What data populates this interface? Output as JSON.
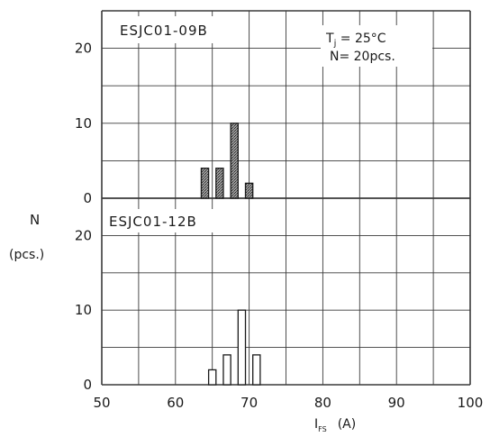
{
  "chart_data": [
    {
      "type": "bar",
      "title": "ESJC01-09B",
      "annotations": [
        "Tj = 25°C",
        "N= 20pcs."
      ],
      "xlabel": "IFS (A)",
      "ylabel": "N (pcs.)",
      "xlim": [
        50,
        100
      ],
      "ylim": [
        0,
        25
      ],
      "x_ticks": [
        "50",
        "60",
        "70",
        "80",
        "90",
        "100"
      ],
      "y_ticks": [
        "0",
        "10",
        "20"
      ],
      "bar_fill": "hatched",
      "bars": [
        {
          "x": 64,
          "value": 4
        },
        {
          "x": 66,
          "value": 4
        },
        {
          "x": 68,
          "value": 10
        },
        {
          "x": 70,
          "value": 2
        }
      ]
    },
    {
      "type": "bar",
      "title": "ESJC01-12B",
      "xlabel": "IFS (A)",
      "ylabel": "N (pcs.)",
      "xlim": [
        50,
        100
      ],
      "ylim": [
        0,
        25
      ],
      "x_ticks": [
        "50",
        "60",
        "70",
        "80",
        "90",
        "100"
      ],
      "y_ticks": [
        "0",
        "10",
        "20"
      ],
      "bar_fill": "open",
      "bars": [
        {
          "x": 65,
          "value": 2
        },
        {
          "x": 67,
          "value": 4
        },
        {
          "x": 69,
          "value": 10
        },
        {
          "x": 71,
          "value": 4
        }
      ]
    }
  ],
  "labels": {
    "y_axis_main": "N",
    "y_axis_unit": "(pcs.)",
    "x_axis_main": "I",
    "x_axis_sub": "FS",
    "x_axis_unit": "(A)",
    "cond_tj_main": "T",
    "cond_tj_sub": "j",
    "cond_tj_rest": " = 25°C",
    "cond_n": "N= 20pcs."
  },
  "colors": {
    "ink": "#1a1a1a",
    "grid": "#3a3a3a",
    "hatch_bg": "#9a9a9a"
  }
}
